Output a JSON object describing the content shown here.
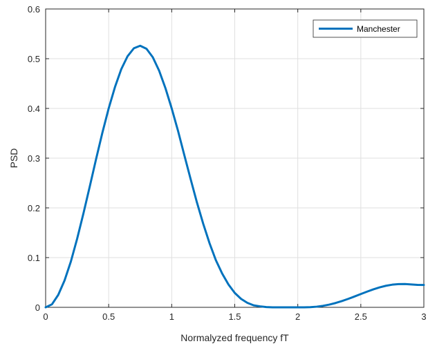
{
  "chart_data": {
    "type": "line",
    "title": "",
    "xlabel": "Normalyzed frequency fT",
    "ylabel": "PSD",
    "xlim": [
      0,
      3
    ],
    "ylim": [
      0,
      0.6
    ],
    "xticks": [
      0,
      0.5,
      1,
      1.5,
      2,
      2.5,
      3
    ],
    "xtick_labels": [
      "0",
      "0.5",
      "1",
      "1.5",
      "2",
      "2.5",
      "3"
    ],
    "yticks": [
      0,
      0.1,
      0.2,
      0.3,
      0.4,
      0.5,
      0.6
    ],
    "ytick_labels": [
      "0",
      "0.1",
      "0.2",
      "0.3",
      "0.4",
      "0.5",
      "0.6"
    ],
    "grid": true,
    "legend_position": "top-right",
    "series": [
      {
        "name": "Manchester",
        "color": "#0072BD",
        "x": [
          0,
          0.05,
          0.1,
          0.15,
          0.2,
          0.25,
          0.3,
          0.35,
          0.4,
          0.45,
          0.5,
          0.55,
          0.6,
          0.65,
          0.7,
          0.75,
          0.8,
          0.85,
          0.9,
          0.95,
          1,
          1.05,
          1.1,
          1.15,
          1.2,
          1.25,
          1.3,
          1.35,
          1.4,
          1.45,
          1.5,
          1.55,
          1.6,
          1.65,
          1.7,
          1.75,
          1.8,
          1.85,
          1.9,
          1.95,
          2,
          2.05,
          2.1,
          2.15,
          2.2,
          2.25,
          2.3,
          2.35,
          2.4,
          2.45,
          2.5,
          2.55,
          2.6,
          2.65,
          2.7,
          2.75,
          2.8,
          2.85,
          2.9,
          2.95,
          3
        ],
        "y": [
          0,
          0.006,
          0.025,
          0.054,
          0.092,
          0.138,
          0.189,
          0.243,
          0.298,
          0.351,
          0.4,
          0.443,
          0.479,
          0.505,
          0.521,
          0.526,
          0.52,
          0.503,
          0.476,
          0.441,
          0.4,
          0.355,
          0.306,
          0.258,
          0.211,
          0.168,
          0.129,
          0.095,
          0.068,
          0.046,
          0.029,
          0.017,
          0.009,
          0.004,
          0.002,
          0.0005,
          0,
          0,
          0,
          0,
          0,
          0,
          0.0003,
          0.0013,
          0.003,
          0.0055,
          0.0087,
          0.0126,
          0.017,
          0.0218,
          0.0267,
          0.0316,
          0.0362,
          0.0402,
          0.0434,
          0.0456,
          0.0467,
          0.0468,
          0.046,
          0.0452,
          0.045
        ]
      }
    ]
  }
}
